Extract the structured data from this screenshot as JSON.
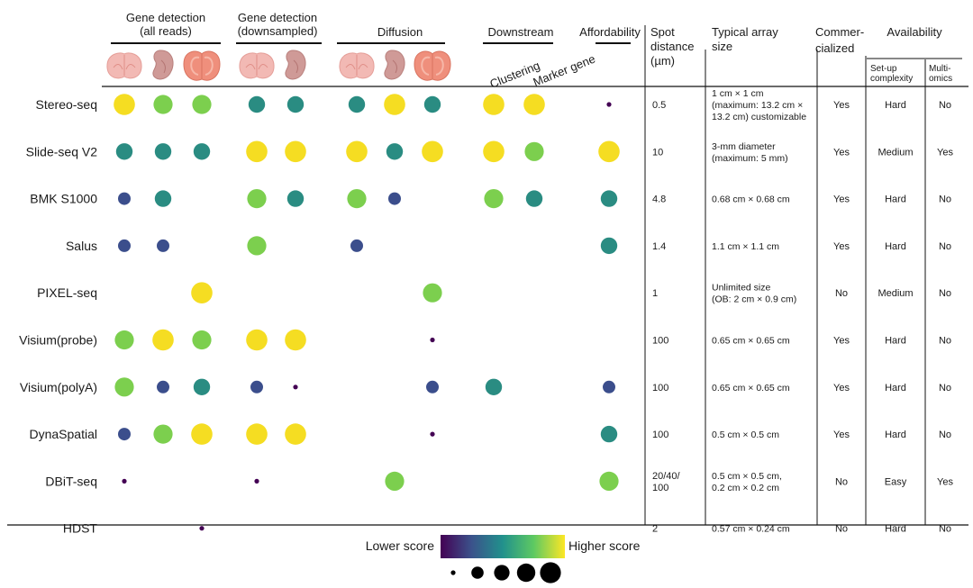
{
  "chart_data": {
    "type": "dot-matrix",
    "headers": {
      "gene_all": "Gene detection\n(all reads)",
      "gene_down": "Gene detection\n(downsampled)",
      "diffusion": "Diffusion",
      "downstream": "Downstream",
      "clustering": "Clustering",
      "marker": "Marker gene",
      "afford": "Affordability",
      "spot": "Spot\ndistance\n(µm)",
      "array": "Typical array\nsize",
      "commercial": "Commer-\ncialized",
      "avail": "Availability",
      "setup": "Set-up\ncomplexity",
      "multi": "Multi-\nomics"
    },
    "tissue_icons": [
      "mouse-brain",
      "mouse-embryo",
      "mouse-olfactory-bulb",
      "mouse-brain",
      "mouse-embryo",
      "mouse-brain",
      "mouse-embryo",
      "mouse-olfactory-bulb"
    ],
    "score_columns": [
      "all-brain",
      "all-embryo",
      "all-olfactory-bulb",
      "down-brain",
      "down-embryo",
      "diff-brain",
      "diff-embryo",
      "diff-olfactory-bulb",
      "clustering",
      "marker-gene",
      "affordability"
    ],
    "rows": [
      {
        "name": "Stereo-seq",
        "scores": [
          5,
          4,
          4,
          3,
          3,
          3,
          5,
          3,
          5,
          5,
          1
        ],
        "spot": "0.5",
        "array": "1 cm × 1 cm\n(maximum: 13.2 cm ×\n13.2 cm) customizable",
        "commercial": "Yes",
        "setup": "Hard",
        "multi": "No"
      },
      {
        "name": "Slide-seq V2",
        "scores": [
          3,
          3,
          3,
          5,
          5,
          5,
          3,
          5,
          5,
          4,
          5
        ],
        "spot": "10",
        "array": "3-mm diameter\n(maximum: 5 mm)",
        "commercial": "Yes",
        "setup": "Medium",
        "multi": "Yes"
      },
      {
        "name": "BMK S1000",
        "scores": [
          2,
          3,
          null,
          4,
          3,
          4,
          2,
          null,
          4,
          3,
          3
        ],
        "spot": "4.8",
        "array": "0.68 cm × 0.68 cm",
        "commercial": "Yes",
        "setup": "Hard",
        "multi": "No"
      },
      {
        "name": "Salus",
        "scores": [
          2,
          2,
          null,
          4,
          null,
          2,
          null,
          null,
          null,
          null,
          3
        ],
        "spot": "1.4",
        "array": "1.1 cm × 1.1 cm",
        "commercial": "Yes",
        "setup": "Hard",
        "multi": "No"
      },
      {
        "name": "PIXEL-seq",
        "scores": [
          null,
          null,
          5,
          null,
          null,
          null,
          null,
          4,
          null,
          null,
          null
        ],
        "spot": "1",
        "array": "Unlimited size\n(OB: 2 cm × 0.9 cm)",
        "commercial": "No",
        "setup": "Medium",
        "multi": "No"
      },
      {
        "name": "Visium(probe)",
        "scores": [
          4,
          5,
          4,
          5,
          5,
          null,
          null,
          1,
          null,
          null,
          null
        ],
        "spot": "100",
        "array": "0.65 cm × 0.65 cm",
        "commercial": "Yes",
        "setup": "Hard",
        "multi": "No"
      },
      {
        "name": "Visium(polyA)",
        "scores": [
          4,
          2,
          3,
          2,
          1,
          null,
          null,
          2,
          3,
          null,
          2
        ],
        "spot": "100",
        "array": "0.65 cm × 0.65 cm",
        "commercial": "Yes",
        "setup": "Hard",
        "multi": "No"
      },
      {
        "name": "DynaSpatial",
        "scores": [
          2,
          4,
          5,
          5,
          5,
          null,
          null,
          1,
          null,
          null,
          3
        ],
        "spot": "100",
        "array": "0.5 cm × 0.5 cm",
        "commercial": "Yes",
        "setup": "Hard",
        "multi": "No"
      },
      {
        "name": "DBiT-seq",
        "scores": [
          1,
          null,
          null,
          1,
          null,
          null,
          4,
          null,
          null,
          null,
          4
        ],
        "spot": "20/40/\n100",
        "array": "0.5 cm × 0.5 cm,\n0.2 cm × 0.2 cm",
        "commercial": "No",
        "setup": "Easy",
        "multi": "Yes"
      },
      {
        "name": "HDST",
        "scores": [
          null,
          null,
          1,
          null,
          null,
          null,
          null,
          null,
          null,
          null,
          null
        ],
        "spot": "2",
        "array": "0.57 cm × 0.24 cm",
        "commercial": "No",
        "setup": "Hard",
        "multi": "No"
      }
    ],
    "score_scale": {
      "min": 1,
      "max": 5
    },
    "legend": {
      "low": "Lower score",
      "high": "Higher score",
      "size_levels": [
        1,
        2,
        3,
        4,
        5
      ]
    },
    "colors": {
      "1": "#440154",
      "2": "#3b4e8c",
      "3": "#2a8c82",
      "4": "#7ccf4e",
      "5": "#f5dd22"
    }
  }
}
